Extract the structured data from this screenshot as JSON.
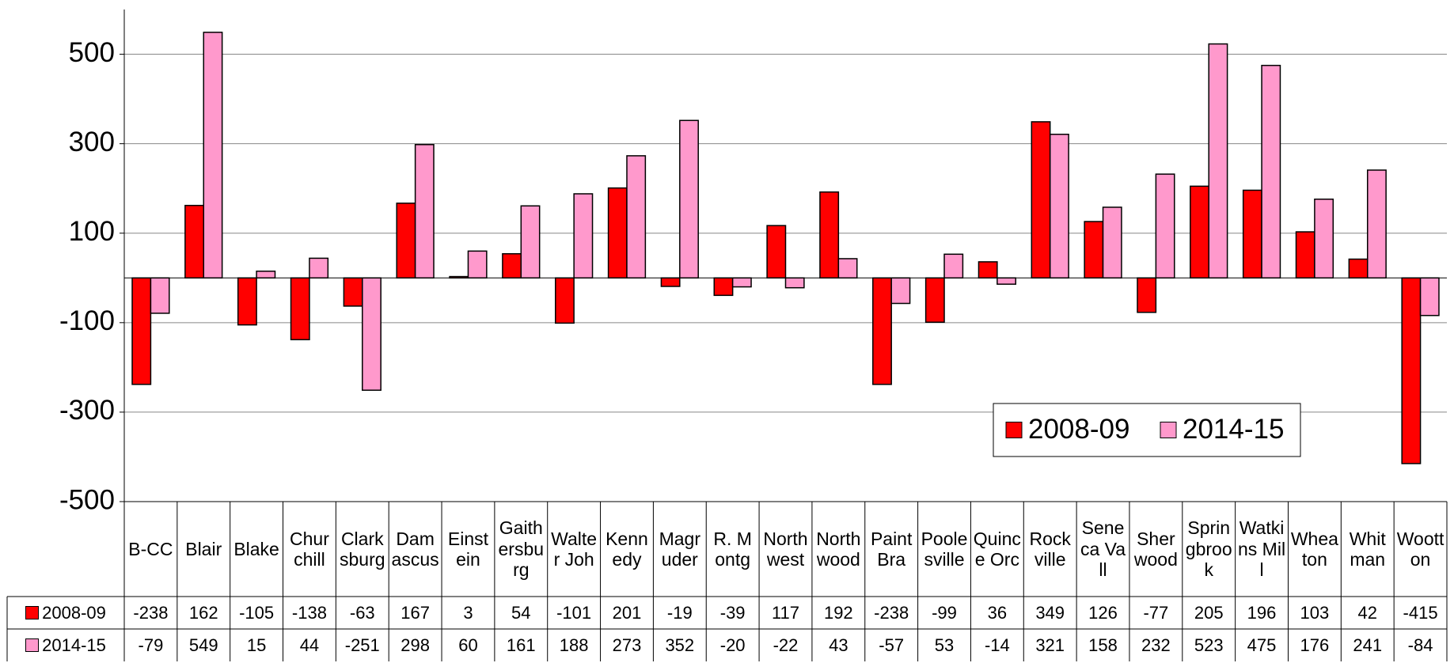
{
  "chart_data": {
    "type": "bar",
    "categories": [
      "B-CC",
      "Blair",
      "Blake",
      "Churchill",
      "Clarksburg",
      "Damascus",
      "Einstein",
      "Gaithersburg",
      "Walter Joh",
      "Kennedy",
      "Magruder",
      "R. Montg",
      "Northwest",
      "Northwood",
      "Paint Bra",
      "Poolesville",
      "Quince Orc",
      "Rockville",
      "Seneca Vall",
      "Sherwood",
      "Springbrook",
      "Watkins Mill",
      "Wheaton",
      "Whitman",
      "Wootton"
    ],
    "series": [
      {
        "name": "2008-09",
        "color": "#ff0000",
        "values": [
          -238,
          162,
          -105,
          -138,
          -63,
          167,
          3,
          54,
          -101,
          201,
          -19,
          -39,
          117,
          192,
          -238,
          -99,
          36,
          349,
          126,
          -77,
          205,
          196,
          103,
          42,
          -415
        ]
      },
      {
        "name": "2014-15",
        "color": "#ff99cc",
        "values": [
          -79,
          549,
          15,
          44,
          -251,
          298,
          60,
          161,
          188,
          273,
          352,
          -20,
          -22,
          43,
          -57,
          53,
          -14,
          321,
          158,
          232,
          523,
          475,
          176,
          241,
          -84
        ]
      }
    ],
    "ylim": [
      -500,
      600
    ],
    "yticks": [
      -500,
      -300,
      -100,
      100,
      300,
      500
    ],
    "grid": true,
    "legend": "lower right",
    "data_table": true
  }
}
